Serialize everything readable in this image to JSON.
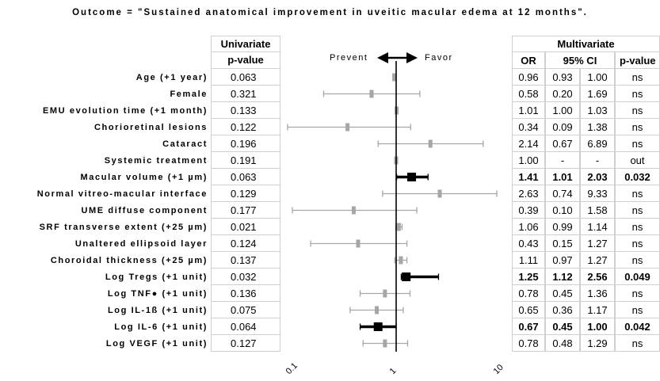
{
  "title": "Outcome = \"Sustained anatomical improvement in uveitic macular edema at 12 months\".",
  "univariate_header": [
    "Univariate",
    "p-value"
  ],
  "multivariate_header": "Multivariate",
  "multivariate_columns": [
    "OR",
    "95% CI",
    "p-value"
  ],
  "direction": {
    "left": "Prevent",
    "right": "Favor"
  },
  "chart_data": {
    "type": "forest",
    "x_scale": "log",
    "xlim": [
      0.1,
      10
    ],
    "reference_line": 1,
    "x_ticks": [
      "0.1",
      "1",
      "10"
    ],
    "rows": [
      {
        "label": "Age (+1 year)",
        "p_uni": "0.063",
        "or": "0.96",
        "lo": "0.93",
        "hi": "1.00",
        "p_multi": "ns",
        "or_v": 0.96,
        "lo_v": 0.93,
        "hi_v": 1.0,
        "sig": false
      },
      {
        "label": "Female",
        "p_uni": "0.321",
        "or": "0.58",
        "lo": "0.20",
        "hi": "1.69",
        "p_multi": "ns",
        "or_v": 0.58,
        "lo_v": 0.2,
        "hi_v": 1.69,
        "sig": false
      },
      {
        "label": "EMU evolution time (+1 month)",
        "p_uni": "0.133",
        "or": "1.01",
        "lo": "1.00",
        "hi": "1.03",
        "p_multi": "ns",
        "or_v": 1.01,
        "lo_v": 1.0,
        "hi_v": 1.03,
        "sig": false
      },
      {
        "label": "Chorioretinal lesions",
        "p_uni": "0.122",
        "or": "0.34",
        "lo": "0.09",
        "hi": "1.38",
        "p_multi": "ns",
        "or_v": 0.34,
        "lo_v": 0.09,
        "hi_v": 1.38,
        "sig": false
      },
      {
        "label": "Cataract",
        "p_uni": "0.196",
        "or": "2.14",
        "lo": "0.67",
        "hi": "6.89",
        "p_multi": "ns",
        "or_v": 2.14,
        "lo_v": 0.67,
        "hi_v": 6.89,
        "sig": false
      },
      {
        "label": "Systemic treatment",
        "p_uni": "0.191",
        "or": "1.00",
        "lo": "-",
        "hi": "-",
        "p_multi": "out",
        "or_v": 1.0,
        "lo_v": 1.0,
        "hi_v": 1.0,
        "sig": false
      },
      {
        "label": "Macular volume (+1 µm)",
        "p_uni": "0.063",
        "or": "1.41",
        "lo": "1.01",
        "hi": "2.03",
        "p_multi": "0.032",
        "or_v": 1.41,
        "lo_v": 1.01,
        "hi_v": 2.03,
        "sig": true
      },
      {
        "label": "Normal vitreo-macular interface",
        "p_uni": "0.129",
        "or": "2.63",
        "lo": "0.74",
        "hi": "9.33",
        "p_multi": "ns",
        "or_v": 2.63,
        "lo_v": 0.74,
        "hi_v": 9.33,
        "sig": false
      },
      {
        "label": "UME diffuse component",
        "p_uni": "0.177",
        "or": "0.39",
        "lo": "0.10",
        "hi": "1.58",
        "p_multi": "ns",
        "or_v": 0.39,
        "lo_v": 0.1,
        "hi_v": 1.58,
        "sig": false
      },
      {
        "label": "SRF transverse extent (+25 µm)",
        "p_uni": "0.021",
        "or": "1.06",
        "lo": "0.99",
        "hi": "1.14",
        "p_multi": "ns",
        "or_v": 1.06,
        "lo_v": 0.99,
        "hi_v": 1.14,
        "sig": false
      },
      {
        "label": "Unaltered ellipsoid layer",
        "p_uni": "0.124",
        "or": "0.43",
        "lo": "0.15",
        "hi": "1.27",
        "p_multi": "ns",
        "or_v": 0.43,
        "lo_v": 0.15,
        "hi_v": 1.27,
        "sig": false
      },
      {
        "label": "Choroidal thickness (+25 µm)",
        "p_uni": "0.137",
        "or": "1.11",
        "lo": "0.97",
        "hi": "1.27",
        "p_multi": "ns",
        "or_v": 1.11,
        "lo_v": 0.97,
        "hi_v": 1.27,
        "sig": false
      },
      {
        "label": "Log Tregs (+1 unit)",
        "p_uni": "0.032",
        "or": "1.25",
        "lo": "1.12",
        "hi": "2.56",
        "p_multi": "0.049",
        "or_v": 1.25,
        "lo_v": 1.12,
        "hi_v": 2.56,
        "sig": true
      },
      {
        "label": "Log TNF● (+1 unit)",
        "p_uni": "0.136",
        "or": "0.78",
        "lo": "0.45",
        "hi": "1.36",
        "p_multi": "ns",
        "or_v": 0.78,
        "lo_v": 0.45,
        "hi_v": 1.36,
        "sig": false
      },
      {
        "label": "Log IL-1ß (+1 unit)",
        "p_uni": "0.075",
        "or": "0.65",
        "lo": "0.36",
        "hi": "1.17",
        "p_multi": "ns",
        "or_v": 0.65,
        "lo_v": 0.36,
        "hi_v": 1.17,
        "sig": false
      },
      {
        "label": "Log IL-6 (+1 unit)",
        "p_uni": "0.064",
        "or": "0.67",
        "lo": "0.45",
        "hi": "1.00",
        "p_multi": "0.042",
        "or_v": 0.67,
        "lo_v": 0.45,
        "hi_v": 1.0,
        "sig": true
      },
      {
        "label": "Log VEGF (+1 unit)",
        "p_uni": "0.127",
        "or": "0.78",
        "lo": "0.48",
        "hi": "1.29",
        "p_multi": "ns",
        "or_v": 0.78,
        "lo_v": 0.48,
        "hi_v": 1.29,
        "sig": false
      }
    ]
  },
  "colors": {
    "significant": "#000000",
    "nonsignificant": "#a6a6a6",
    "grid": "#cfcfcf"
  }
}
